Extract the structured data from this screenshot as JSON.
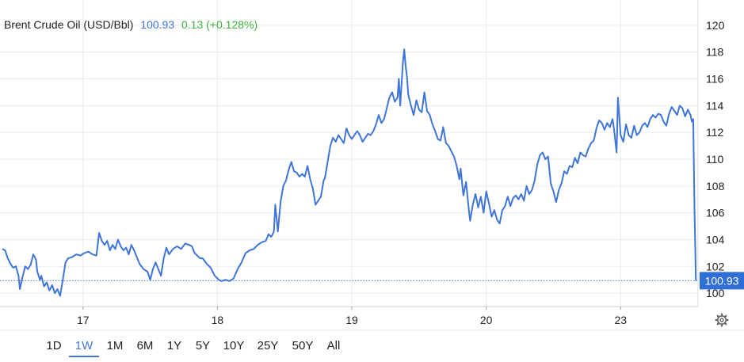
{
  "header": {
    "name": "Brent Crude Oil (USD/Bbl)",
    "price": "100.93",
    "change": "0.13 (+0.128%)"
  },
  "colors": {
    "line": "#3f74d9",
    "change_positive": "#3db33d",
    "price_text": "#3f74d9",
    "grid": "#ebebeb",
    "last_tag_bg": "#2f6fd6",
    "active_range": "#3f74d9"
  },
  "toolbar": {
    "ranges": [
      "1D",
      "1W",
      "1M",
      "6M",
      "1Y",
      "5Y",
      "10Y",
      "25Y",
      "50Y",
      "All"
    ],
    "active": "1W",
    "settings_icon": "gear-icon"
  },
  "chart_data": {
    "type": "line",
    "title": "Brent Crude Oil (USD/Bbl)",
    "xlabel": "",
    "ylabel": "",
    "x_tick_labels": [
      {
        "label": "17",
        "at": 0.6
      },
      {
        "label": "18",
        "at": 1.6
      },
      {
        "label": "19",
        "at": 2.6
      },
      {
        "label": "20",
        "at": 3.6
      },
      {
        "label": "23",
        "at": 4.6
      }
    ],
    "y_ticks": [
      100,
      102,
      104,
      106,
      108,
      110,
      112,
      114,
      116,
      118,
      120
    ],
    "ylim": [
      99,
      121
    ],
    "xlim": [
      0,
      5.17
    ],
    "grid": true,
    "last_value": 100.93,
    "last_value_label": "100.93",
    "series": [
      {
        "points": [
          [
            0.0,
            103.3
          ],
          [
            0.02,
            103.2
          ],
          [
            0.04,
            102.6
          ],
          [
            0.06,
            102.2
          ],
          [
            0.08,
            101.9
          ],
          [
            0.1,
            102.0
          ],
          [
            0.12,
            101.3
          ],
          [
            0.13,
            100.3
          ],
          [
            0.15,
            101.2
          ],
          [
            0.17,
            102.0
          ],
          [
            0.19,
            101.8
          ],
          [
            0.21,
            102.1
          ],
          [
            0.23,
            102.9
          ],
          [
            0.25,
            102.5
          ],
          [
            0.26,
            101.6
          ],
          [
            0.28,
            101.0
          ],
          [
            0.29,
            101.3
          ],
          [
            0.31,
            100.5
          ],
          [
            0.33,
            100.8
          ],
          [
            0.35,
            100.2
          ],
          [
            0.37,
            100.6
          ],
          [
            0.39,
            100.0
          ],
          [
            0.41,
            100.3
          ],
          [
            0.43,
            99.8
          ],
          [
            0.45,
            101.0
          ],
          [
            0.47,
            102.3
          ],
          [
            0.49,
            102.6
          ],
          [
            0.52,
            102.7
          ],
          [
            0.55,
            102.9
          ],
          [
            0.58,
            102.8
          ],
          [
            0.61,
            103.0
          ],
          [
            0.64,
            103.1
          ],
          [
            0.67,
            102.9
          ],
          [
            0.7,
            102.8
          ],
          [
            0.72,
            104.5
          ],
          [
            0.74,
            103.9
          ],
          [
            0.76,
            103.6
          ],
          [
            0.78,
            103.9
          ],
          [
            0.8,
            103.2
          ],
          [
            0.82,
            103.6
          ],
          [
            0.84,
            103.3
          ],
          [
            0.86,
            104.0
          ],
          [
            0.88,
            103.5
          ],
          [
            0.9,
            103.2
          ],
          [
            0.92,
            103.4
          ],
          [
            0.94,
            102.9
          ],
          [
            0.96,
            103.6
          ],
          [
            0.98,
            103.2
          ],
          [
            1.0,
            102.7
          ],
          [
            1.02,
            102.2
          ],
          [
            1.05,
            101.8
          ],
          [
            1.08,
            101.6
          ],
          [
            1.1,
            101.0
          ],
          [
            1.12,
            101.8
          ],
          [
            1.14,
            102.3
          ],
          [
            1.16,
            101.8
          ],
          [
            1.18,
            101.3
          ],
          [
            1.2,
            102.6
          ],
          [
            1.22,
            103.4
          ],
          [
            1.24,
            102.9
          ],
          [
            1.27,
            103.3
          ],
          [
            1.3,
            103.5
          ],
          [
            1.33,
            103.3
          ],
          [
            1.36,
            103.7
          ],
          [
            1.39,
            103.6
          ],
          [
            1.41,
            103.5
          ],
          [
            1.43,
            103.0
          ],
          [
            1.45,
            102.8
          ],
          [
            1.47,
            102.6
          ],
          [
            1.49,
            102.6
          ],
          [
            1.52,
            102.2
          ],
          [
            1.55,
            101.9
          ],
          [
            1.58,
            101.3
          ],
          [
            1.61,
            101.0
          ],
          [
            1.63,
            100.9
          ],
          [
            1.66,
            101.0
          ],
          [
            1.69,
            100.9
          ],
          [
            1.72,
            101.1
          ],
          [
            1.75,
            101.8
          ],
          [
            1.78,
            102.3
          ],
          [
            1.81,
            103.0
          ],
          [
            1.84,
            103.2
          ],
          [
            1.87,
            103.3
          ],
          [
            1.9,
            103.6
          ],
          [
            1.93,
            103.8
          ],
          [
            1.96,
            103.9
          ],
          [
            1.98,
            104.4
          ],
          [
            2.0,
            104.2
          ],
          [
            2.02,
            104.6
          ],
          [
            2.03,
            106.6
          ],
          [
            2.05,
            104.6
          ],
          [
            2.07,
            106.8
          ],
          [
            2.09,
            108.0
          ],
          [
            2.11,
            108.4
          ],
          [
            2.13,
            109.2
          ],
          [
            2.15,
            109.8
          ],
          [
            2.17,
            109.1
          ],
          [
            2.19,
            109.0
          ],
          [
            2.21,
            108.7
          ],
          [
            2.23,
            108.9
          ],
          [
            2.25,
            108.7
          ],
          [
            2.27,
            109.5
          ],
          [
            2.29,
            108.5
          ],
          [
            2.31,
            107.8
          ],
          [
            2.33,
            106.6
          ],
          [
            2.35,
            106.9
          ],
          [
            2.37,
            107.2
          ],
          [
            2.39,
            108.4
          ],
          [
            2.4,
            108.6
          ],
          [
            2.42,
            109.8
          ],
          [
            2.44,
            111.0
          ],
          [
            2.46,
            111.6
          ],
          [
            2.48,
            111.3
          ],
          [
            2.5,
            111.8
          ],
          [
            2.52,
            111.5
          ],
          [
            2.54,
            111.2
          ],
          [
            2.56,
            112.3
          ],
          [
            2.58,
            111.8
          ],
          [
            2.6,
            111.5
          ],
          [
            2.62,
            111.8
          ],
          [
            2.64,
            112.1
          ],
          [
            2.66,
            111.8
          ],
          [
            2.68,
            111.3
          ],
          [
            2.7,
            111.6
          ],
          [
            2.72,
            111.9
          ],
          [
            2.74,
            111.8
          ],
          [
            2.76,
            112.1
          ],
          [
            2.78,
            112.6
          ],
          [
            2.8,
            113.3
          ],
          [
            2.82,
            112.7
          ],
          [
            2.84,
            113.0
          ],
          [
            2.86,
            113.8
          ],
          [
            2.88,
            114.6
          ],
          [
            2.9,
            115.0
          ],
          [
            2.92,
            114.3
          ],
          [
            2.94,
            114.6
          ],
          [
            2.95,
            116.0
          ],
          [
            2.96,
            114.0
          ],
          [
            2.97,
            115.6
          ],
          [
            2.98,
            117.2
          ],
          [
            2.99,
            118.2
          ],
          [
            3.0,
            117.0
          ],
          [
            3.01,
            116.2
          ],
          [
            3.02,
            114.8
          ],
          [
            3.04,
            114.0
          ],
          [
            3.06,
            113.3
          ],
          [
            3.08,
            114.4
          ],
          [
            3.1,
            113.7
          ],
          [
            3.12,
            113.5
          ],
          [
            3.14,
            115.0
          ],
          [
            3.16,
            113.6
          ],
          [
            3.18,
            113.3
          ],
          [
            3.2,
            112.6
          ],
          [
            3.22,
            112.1
          ],
          [
            3.24,
            111.5
          ],
          [
            3.26,
            111.4
          ],
          [
            3.28,
            112.4
          ],
          [
            3.3,
            111.2
          ],
          [
            3.32,
            111.0
          ],
          [
            3.34,
            110.6
          ],
          [
            3.36,
            110.2
          ],
          [
            3.38,
            109.5
          ],
          [
            3.4,
            108.5
          ],
          [
            3.41,
            109.3
          ],
          [
            3.43,
            107.3
          ],
          [
            3.45,
            108.3
          ],
          [
            3.47,
            106.3
          ],
          [
            3.48,
            105.4
          ],
          [
            3.5,
            106.6
          ],
          [
            3.52,
            107.4
          ],
          [
            3.54,
            106.4
          ],
          [
            3.56,
            107.2
          ],
          [
            3.58,
            106.0
          ],
          [
            3.6,
            107.6
          ],
          [
            3.62,
            106.7
          ],
          [
            3.64,
            105.7
          ],
          [
            3.66,
            106.2
          ],
          [
            3.68,
            105.5
          ],
          [
            3.7,
            105.2
          ],
          [
            3.72,
            106.2
          ],
          [
            3.74,
            106.5
          ],
          [
            3.76,
            107.2
          ],
          [
            3.78,
            106.5
          ],
          [
            3.8,
            107.1
          ],
          [
            3.82,
            107.3
          ],
          [
            3.84,
            107.0
          ],
          [
            3.86,
            107.4
          ],
          [
            3.88,
            106.9
          ],
          [
            3.9,
            108.0
          ],
          [
            3.92,
            107.4
          ],
          [
            3.94,
            107.7
          ],
          [
            3.96,
            108.4
          ],
          [
            3.98,
            109.6
          ],
          [
            4.0,
            110.3
          ],
          [
            4.02,
            110.5
          ],
          [
            4.04,
            110.0
          ],
          [
            4.06,
            110.2
          ],
          [
            4.08,
            108.2
          ],
          [
            4.1,
            107.6
          ],
          [
            4.12,
            106.8
          ],
          [
            4.14,
            107.7
          ],
          [
            4.16,
            108.2
          ],
          [
            4.18,
            109.1
          ],
          [
            4.2,
            108.9
          ],
          [
            4.22,
            109.5
          ],
          [
            4.24,
            109.4
          ],
          [
            4.26,
            110.1
          ],
          [
            4.28,
            109.7
          ],
          [
            4.3,
            110.5
          ],
          [
            4.32,
            110.3
          ],
          [
            4.34,
            110.2
          ],
          [
            4.36,
            110.8
          ],
          [
            4.38,
            111.2
          ],
          [
            4.4,
            111.4
          ],
          [
            4.42,
            112.3
          ],
          [
            4.44,
            112.9
          ],
          [
            4.46,
            112.7
          ],
          [
            4.48,
            112.2
          ],
          [
            4.5,
            112.7
          ],
          [
            4.52,
            112.4
          ],
          [
            4.54,
            113.0
          ],
          [
            4.55,
            112.3
          ],
          [
            4.57,
            110.5
          ],
          [
            4.58,
            114.6
          ],
          [
            4.6,
            111.8
          ],
          [
            4.62,
            111.3
          ],
          [
            4.64,
            112.6
          ],
          [
            4.66,
            111.8
          ],
          [
            4.68,
            111.6
          ],
          [
            4.7,
            112.5
          ],
          [
            4.72,
            111.8
          ],
          [
            4.74,
            112.0
          ],
          [
            4.76,
            112.5
          ],
          [
            4.78,
            112.7
          ],
          [
            4.8,
            112.4
          ],
          [
            4.82,
            113.0
          ],
          [
            4.84,
            113.3
          ],
          [
            4.86,
            113.1
          ],
          [
            4.88,
            113.4
          ],
          [
            4.9,
            113.3
          ],
          [
            4.92,
            112.8
          ],
          [
            4.94,
            112.5
          ],
          [
            4.96,
            113.4
          ],
          [
            4.98,
            113.9
          ],
          [
            5.0,
            113.6
          ],
          [
            5.02,
            113.3
          ],
          [
            5.04,
            114.0
          ],
          [
            5.06,
            113.8
          ],
          [
            5.08,
            113.2
          ],
          [
            5.1,
            113.7
          ],
          [
            5.12,
            113.3
          ],
          [
            5.13,
            112.8
          ],
          [
            5.14,
            113.0
          ],
          [
            5.15,
            106.0
          ],
          [
            5.16,
            100.93
          ]
        ]
      }
    ]
  }
}
